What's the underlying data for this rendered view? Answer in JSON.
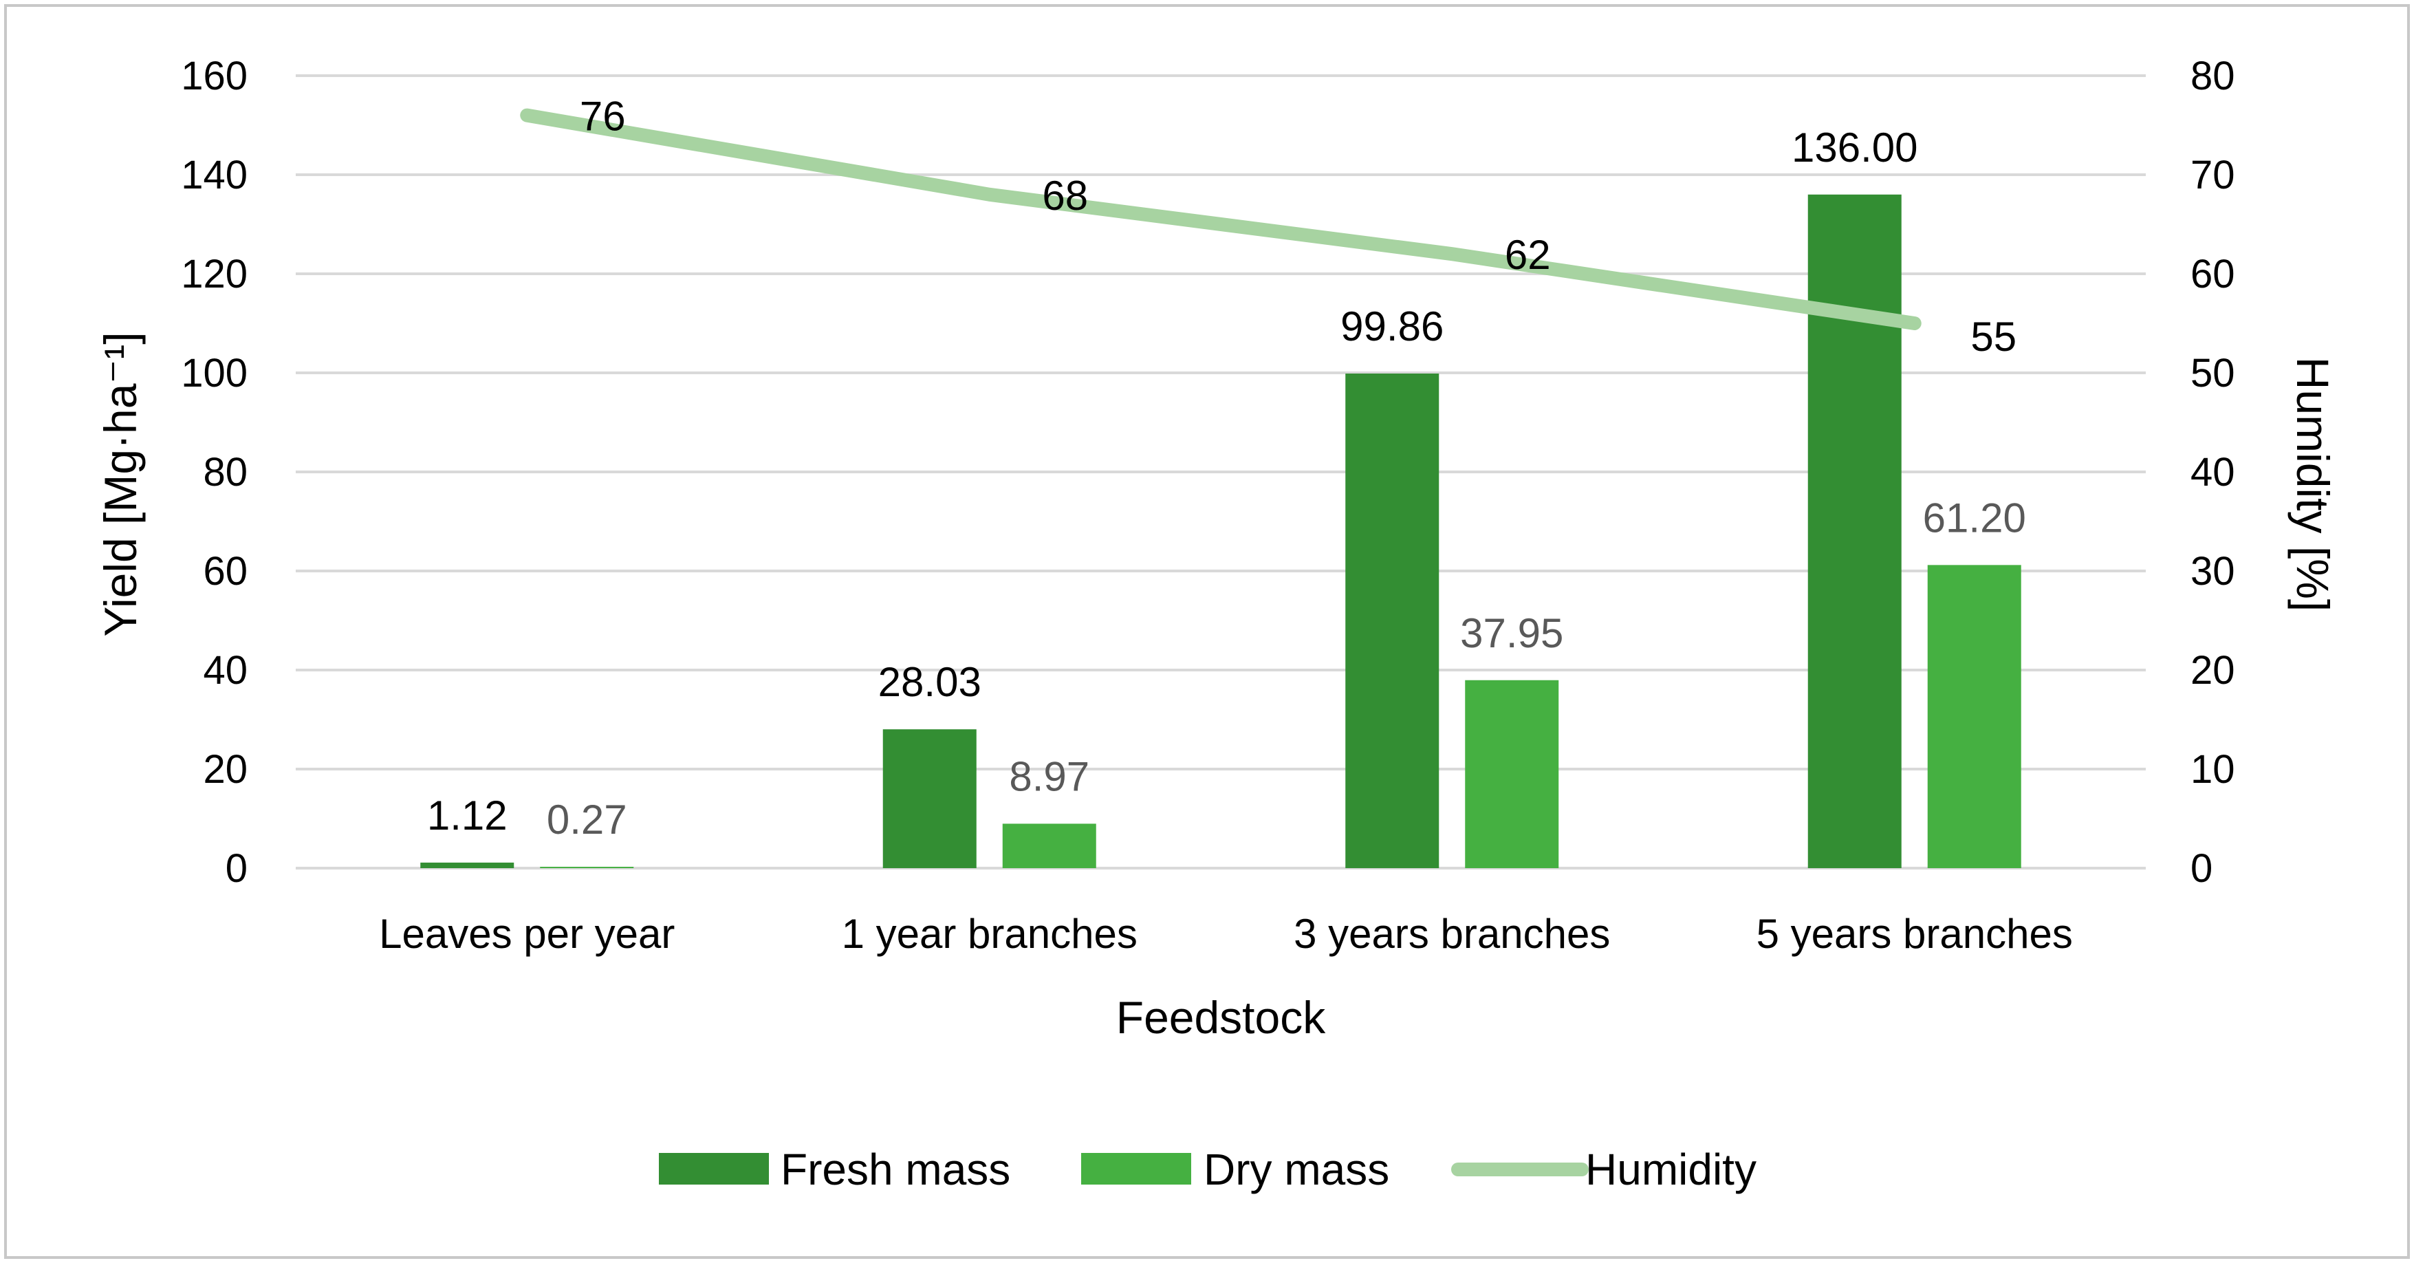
{
  "colors": {
    "fresh": "#338e33",
    "dry": "#45b041",
    "humidity": "#a7d3a1",
    "grid": "#d9d9d9",
    "frame": "#c8c8c8"
  },
  "chart_data": {
    "type": "bar",
    "categories": [
      "Leaves per year",
      "1 year branches",
      "3 years branches",
      "5 years branches"
    ],
    "series": [
      {
        "name": "Fresh mass",
        "axis": "left",
        "kind": "bar",
        "values": [
          1.12,
          28.03,
          99.86,
          136.0
        ],
        "labels": [
          "1.12",
          "28.03",
          "99.86",
          "136.00"
        ]
      },
      {
        "name": "Dry mass",
        "axis": "left",
        "kind": "bar",
        "values": [
          0.27,
          8.97,
          37.95,
          61.2
        ],
        "labels": [
          "0.27",
          "8.97",
          "37.95",
          "61.20"
        ]
      },
      {
        "name": "Humidity",
        "axis": "right",
        "kind": "line",
        "values": [
          76,
          68,
          62,
          55
        ],
        "labels": [
          "76",
          "68",
          "62",
          "55"
        ]
      }
    ],
    "xlabel": "Feedstock",
    "ylabel": "Yield [Mg·ha⁻¹]",
    "y2label": "Humidity [%]",
    "ylim": [
      0,
      160
    ],
    "y2lim": [
      0,
      80
    ],
    "yticks": [
      0,
      20,
      40,
      60,
      80,
      100,
      120,
      140,
      160
    ],
    "y2ticks": [
      0,
      10,
      20,
      30,
      40,
      50,
      60,
      70,
      80
    ],
    "grid": true,
    "legend": "bottom"
  }
}
